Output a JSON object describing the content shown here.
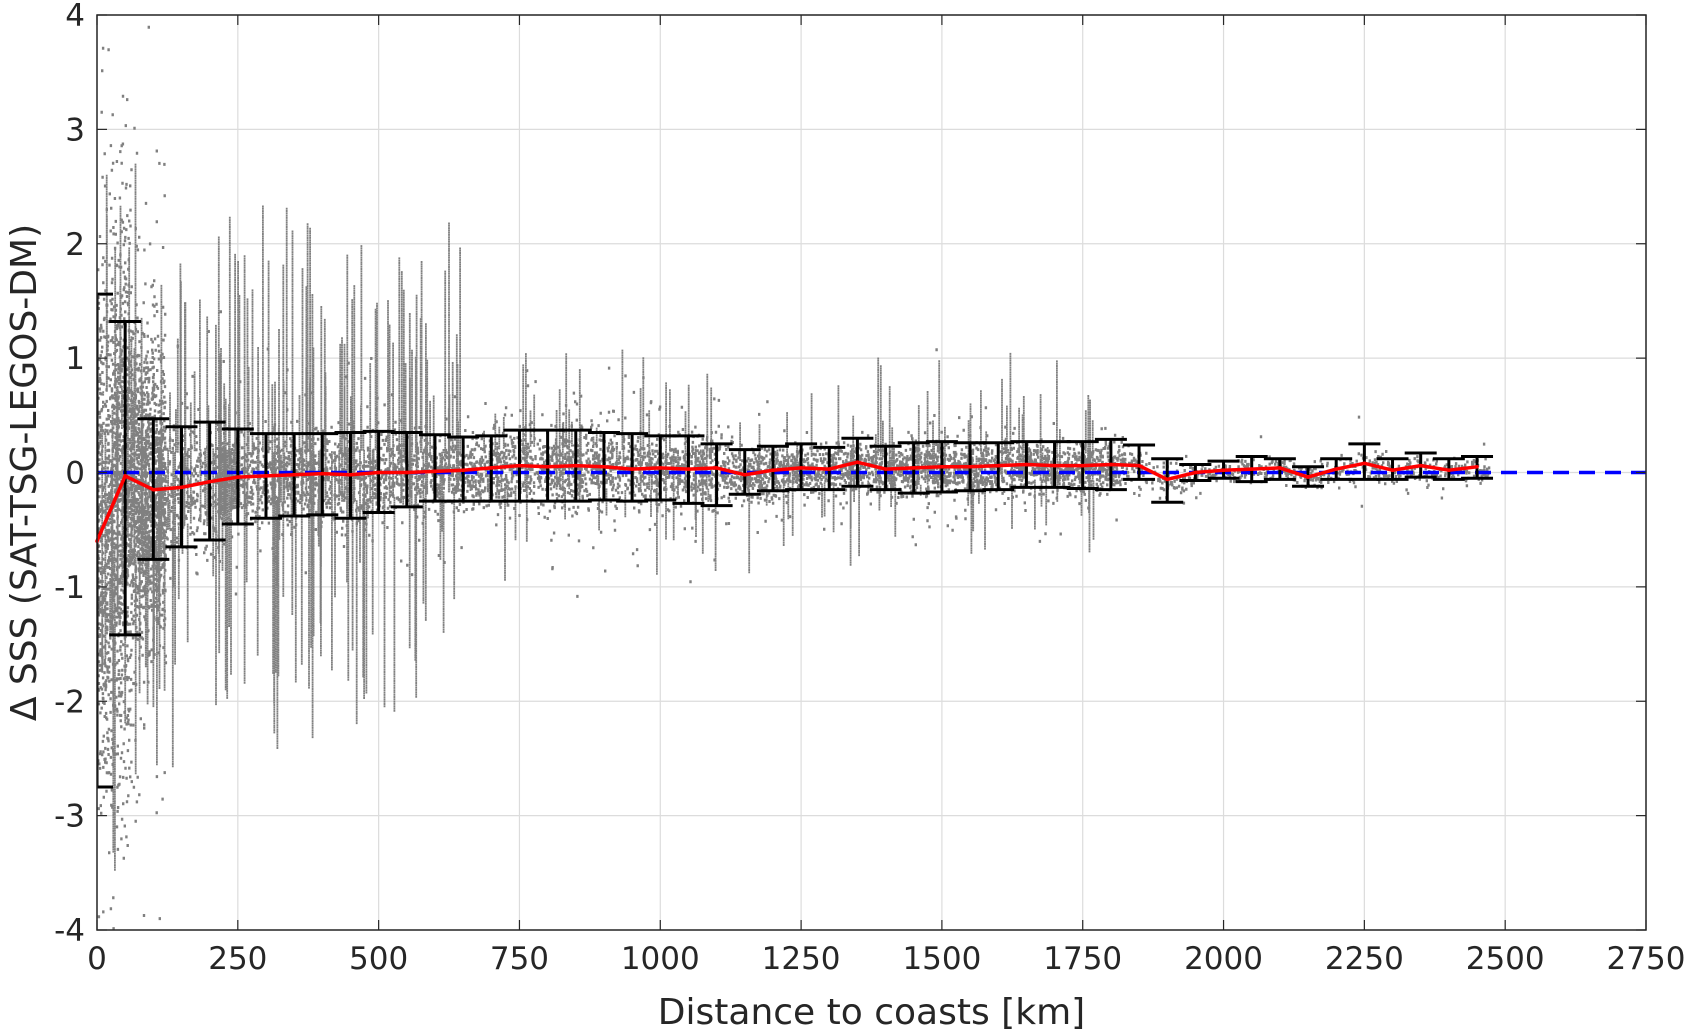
{
  "chart_data": {
    "type": "scatter",
    "title": "",
    "xlabel": "Distance to coasts [km]",
    "ylabel": "Δ SSS (SAT-TSG-LEGOS-DM)",
    "xlim": [
      0,
      2750
    ],
    "ylim": [
      -4,
      4
    ],
    "xticks": [
      "0",
      "250",
      "500",
      "750",
      "1000",
      "1250",
      "1500",
      "1750",
      "2000",
      "2250",
      "2500",
      "2750"
    ],
    "yticks": [
      "-4",
      "-3",
      "-2",
      "-1",
      "0",
      "1",
      "2",
      "3",
      "4"
    ],
    "grid": true,
    "colors": {
      "scatter": "#808080",
      "mean_line": "#ff0000",
      "error_bars": "#000000",
      "zero_line": "#0000ff"
    },
    "reference_line": {
      "y": 0,
      "style": "dashed"
    },
    "binned_stats": {
      "x": [
        0,
        50,
        100,
        150,
        200,
        250,
        300,
        350,
        400,
        450,
        500,
        550,
        600,
        650,
        700,
        750,
        800,
        850,
        900,
        950,
        1000,
        1050,
        1100,
        1150,
        1200,
        1250,
        1300,
        1350,
        1400,
        1450,
        1500,
        1550,
        1600,
        1650,
        1700,
        1750,
        1800,
        1850,
        1900,
        1950,
        2000,
        2050,
        2100,
        2150,
        2200,
        2250,
        2300,
        2350,
        2400,
        2450
      ],
      "mean": [
        -0.6,
        -0.03,
        -0.15,
        -0.13,
        -0.08,
        -0.04,
        -0.03,
        -0.02,
        -0.01,
        -0.02,
        0.0,
        0.0,
        0.01,
        0.02,
        0.04,
        0.06,
        0.05,
        0.06,
        0.05,
        0.03,
        0.04,
        0.03,
        0.04,
        -0.02,
        0.02,
        0.04,
        0.03,
        0.09,
        0.03,
        0.04,
        0.05,
        0.05,
        0.06,
        0.07,
        0.06,
        0.06,
        0.07,
        0.06,
        -0.06,
        0.0,
        0.02,
        0.03,
        0.04,
        -0.04,
        0.03,
        0.08,
        0.02,
        0.06,
        0.02,
        0.05
      ],
      "lower": [
        -2.75,
        -1.42,
        -0.76,
        -0.65,
        -0.59,
        -0.45,
        -0.4,
        -0.38,
        -0.37,
        -0.4,
        -0.35,
        -0.3,
        -0.25,
        -0.25,
        -0.25,
        -0.25,
        -0.25,
        -0.25,
        -0.24,
        -0.25,
        -0.24,
        -0.27,
        -0.29,
        -0.19,
        -0.16,
        -0.15,
        -0.15,
        -0.12,
        -0.15,
        -0.18,
        -0.17,
        -0.16,
        -0.15,
        -0.13,
        -0.13,
        -0.14,
        -0.15,
        -0.06,
        -0.26,
        -0.07,
        -0.05,
        -0.08,
        -0.06,
        -0.12,
        -0.06,
        -0.06,
        -0.06,
        -0.04,
        -0.06,
        -0.05
      ],
      "upper": [
        1.56,
        1.32,
        0.47,
        0.4,
        0.44,
        0.38,
        0.34,
        0.34,
        0.34,
        0.35,
        0.36,
        0.35,
        0.33,
        0.31,
        0.32,
        0.37,
        0.37,
        0.37,
        0.35,
        0.34,
        0.32,
        0.32,
        0.25,
        0.2,
        0.23,
        0.25,
        0.22,
        0.3,
        0.23,
        0.26,
        0.27,
        0.26,
        0.26,
        0.27,
        0.27,
        0.27,
        0.29,
        0.24,
        0.12,
        0.07,
        0.1,
        0.14,
        0.12,
        0.05,
        0.12,
        0.25,
        0.12,
        0.17,
        0.12,
        0.14
      ]
    }
  }
}
